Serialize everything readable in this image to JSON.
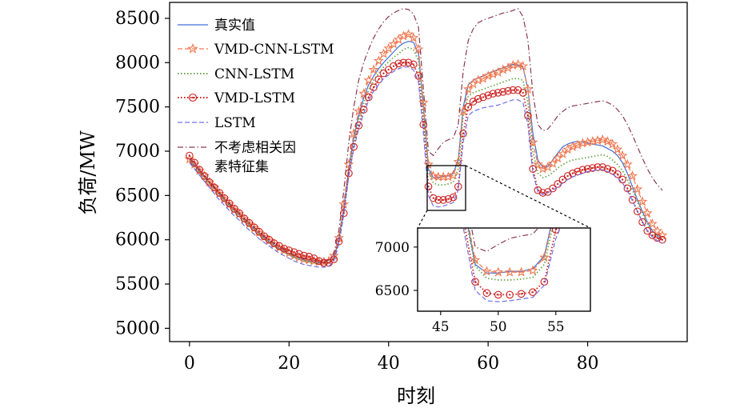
{
  "chart_data": {
    "type": "line",
    "title": "",
    "xlabel": "时刻",
    "ylabel": "负荷/MW",
    "xlim": [
      -4,
      100
    ],
    "ylim": [
      4850,
      8680
    ],
    "xticks": [
      0,
      20,
      40,
      60,
      80
    ],
    "yticks": [
      5000,
      5500,
      6000,
      6500,
      7000,
      7500,
      8000,
      8500
    ],
    "grid": false,
    "legend_position": "top-left",
    "x": [
      0,
      1,
      2,
      3,
      4,
      5,
      6,
      7,
      8,
      9,
      10,
      11,
      12,
      13,
      14,
      15,
      16,
      17,
      18,
      19,
      20,
      21,
      22,
      23,
      24,
      25,
      26,
      27,
      28,
      29,
      30,
      31,
      32,
      33,
      34,
      35,
      36,
      37,
      38,
      39,
      40,
      41,
      42,
      43,
      44,
      45,
      46,
      47,
      48,
      49,
      50,
      51,
      52,
      53,
      54,
      55,
      56,
      57,
      58,
      59,
      60,
      61,
      62,
      63,
      64,
      65,
      66,
      67,
      68,
      69,
      70,
      71,
      72,
      73,
      74,
      75,
      76,
      77,
      78,
      79,
      80,
      81,
      82,
      83,
      84,
      85,
      86,
      87,
      88,
      89,
      90,
      91,
      92,
      93,
      94,
      95
    ],
    "series": [
      {
        "name": "真实值",
        "color": "#3d6fd9",
        "style": "solid",
        "marker": "none",
        "values": [
          6900,
          6840,
          6770,
          6710,
          6640,
          6580,
          6510,
          6450,
          6390,
          6330,
          6280,
          6220,
          6170,
          6120,
          6070,
          6020,
          5980,
          5940,
          5900,
          5870,
          5840,
          5810,
          5790,
          5770,
          5760,
          5750,
          5740,
          5740,
          5740,
          5800,
          6000,
          6350,
          6800,
          7150,
          7400,
          7600,
          7750,
          7850,
          7930,
          8000,
          8060,
          8120,
          8180,
          8220,
          8240,
          8230,
          8100,
          7500,
          6800,
          6700,
          6700,
          6720,
          6720,
          6750,
          6900,
          7500,
          7750,
          7800,
          7830,
          7850,
          7880,
          7900,
          7920,
          7940,
          7960,
          7980,
          7970,
          7950,
          7700,
          7200,
          6900,
          6820,
          6830,
          6900,
          6980,
          7050,
          7080,
          7100,
          7110,
          7100,
          7090,
          7080,
          7070,
          7060,
          7030,
          7000,
          6950,
          6870,
          6750,
          6600,
          6450,
          6320,
          6200,
          6100,
          6050,
          6000
        ]
      },
      {
        "name": "VMD-CNN-LSTM",
        "color": "#f07850",
        "style": "dashed",
        "marker": "star",
        "values": [
          6910,
          6850,
          6780,
          6720,
          6650,
          6590,
          6520,
          6460,
          6400,
          6340,
          6290,
          6230,
          6180,
          6130,
          6080,
          6030,
          5990,
          5950,
          5910,
          5880,
          5850,
          5820,
          5800,
          5780,
          5770,
          5760,
          5750,
          5750,
          5760,
          5820,
          6020,
          6400,
          6850,
          7200,
          7450,
          7650,
          7800,
          7920,
          8020,
          8100,
          8160,
          8210,
          8260,
          8300,
          8320,
          8280,
          8150,
          7550,
          6850,
          6720,
          6710,
          6710,
          6710,
          6730,
          6880,
          7450,
          7700,
          7760,
          7800,
          7820,
          7850,
          7870,
          7890,
          7920,
          7940,
          7970,
          7980,
          7960,
          7700,
          7100,
          6850,
          6800,
          6820,
          6860,
          6920,
          6970,
          7020,
          7050,
          7070,
          7090,
          7100,
          7110,
          7120,
          7130,
          7110,
          7080,
          7020,
          6950,
          6850,
          6720,
          6570,
          6430,
          6300,
          6180,
          6100,
          6050
        ]
      },
      {
        "name": "CNN-LSTM",
        "color": "#6aa84f",
        "style": "dotted",
        "marker": "none",
        "values": [
          6880,
          6820,
          6760,
          6700,
          6630,
          6570,
          6500,
          6440,
          6380,
          6320,
          6270,
          6210,
          6160,
          6110,
          6060,
          6010,
          5970,
          5930,
          5890,
          5860,
          5830,
          5800,
          5780,
          5760,
          5750,
          5740,
          5730,
          5730,
          5740,
          5790,
          5990,
          6330,
          6780,
          7100,
          7350,
          7540,
          7690,
          7800,
          7880,
          7950,
          8010,
          8060,
          8100,
          8150,
          8170,
          8150,
          8020,
          7450,
          6780,
          6640,
          6620,
          6620,
          6630,
          6650,
          6800,
          7400,
          7620,
          7660,
          7680,
          7700,
          7720,
          7740,
          7760,
          7780,
          7800,
          7820,
          7820,
          7800,
          7550,
          7000,
          6750,
          6700,
          6720,
          6760,
          6810,
          6850,
          6880,
          6900,
          6910,
          6920,
          6930,
          6940,
          6950,
          6960,
          6940,
          6900,
          6850,
          6780,
          6680,
          6560,
          6430,
          6300,
          6180,
          6080,
          6030,
          6000
        ]
      },
      {
        "name": "VMD-LSTM",
        "color": "#cc1f1f",
        "style": "dotted",
        "marker": "circle",
        "values": [
          6950,
          6870,
          6790,
          6720,
          6650,
          6590,
          6530,
          6470,
          6410,
          6350,
          6300,
          6240,
          6190,
          6140,
          6090,
          6040,
          6000,
          5960,
          5930,
          5900,
          5880,
          5860,
          5840,
          5820,
          5810,
          5790,
          5760,
          5740,
          5740,
          5780,
          5980,
          6300,
          6750,
          7050,
          7290,
          7470,
          7610,
          7720,
          7810,
          7880,
          7920,
          7960,
          7990,
          8000,
          8000,
          7980,
          7850,
          7300,
          6600,
          6470,
          6450,
          6450,
          6460,
          6480,
          6600,
          7200,
          7500,
          7560,
          7590,
          7610,
          7630,
          7650,
          7660,
          7670,
          7680,
          7690,
          7690,
          7660,
          7400,
          6800,
          6560,
          6530,
          6540,
          6580,
          6630,
          6680,
          6720,
          6750,
          6770,
          6790,
          6800,
          6810,
          6820,
          6820,
          6800,
          6780,
          6740,
          6680,
          6580,
          6450,
          6320,
          6200,
          6100,
          6050,
          6020,
          6000
        ]
      },
      {
        "name": "LSTM",
        "color": "#7070e8",
        "style": "dashed",
        "marker": "none",
        "values": [
          6870,
          6800,
          6730,
          6660,
          6590,
          6520,
          6450,
          6390,
          6330,
          6270,
          6220,
          6160,
          6110,
          6060,
          6010,
          5970,
          5930,
          5890,
          5850,
          5820,
          5790,
          5760,
          5740,
          5720,
          5710,
          5700,
          5690,
          5690,
          5700,
          5760,
          5950,
          6280,
          6720,
          7030,
          7250,
          7430,
          7570,
          7680,
          7750,
          7820,
          7860,
          7900,
          7930,
          7950,
          7950,
          7920,
          7780,
          7200,
          6500,
          6380,
          6370,
          6380,
          6400,
          6420,
          6560,
          7100,
          7400,
          7450,
          7470,
          7490,
          7500,
          7510,
          7520,
          7540,
          7560,
          7580,
          7580,
          7550,
          7300,
          6750,
          6540,
          6510,
          6530,
          6560,
          6600,
          6640,
          6680,
          6710,
          6730,
          6750,
          6770,
          6780,
          6790,
          6790,
          6770,
          6740,
          6700,
          6640,
          6550,
          6440,
          6320,
          6200,
          6100,
          6030,
          5990,
          5960
        ]
      },
      {
        "name": "不考虑相关因素特征集",
        "color": "#8a3a50",
        "style": "dashdot",
        "marker": "none",
        "values": [
          6920,
          6860,
          6790,
          6730,
          6660,
          6600,
          6530,
          6470,
          6410,
          6350,
          6300,
          6240,
          6190,
          6140,
          6090,
          6040,
          6000,
          5960,
          5920,
          5890,
          5860,
          5830,
          5810,
          5790,
          5780,
          5770,
          5760,
          5760,
          5770,
          5840,
          6100,
          6550,
          7100,
          7500,
          7800,
          8000,
          8150,
          8280,
          8380,
          8460,
          8520,
          8560,
          8590,
          8610,
          8600,
          8550,
          8400,
          7700,
          7000,
          6950,
          7030,
          7100,
          7130,
          7150,
          7300,
          7900,
          8250,
          8380,
          8450,
          8480,
          8500,
          8520,
          8540,
          8560,
          8570,
          8590,
          8610,
          8520,
          8250,
          7650,
          7300,
          7230,
          7250,
          7320,
          7400,
          7450,
          7490,
          7510,
          7520,
          7530,
          7540,
          7550,
          7560,
          7570,
          7550,
          7520,
          7470,
          7400,
          7300,
          7180,
          7050,
          6920,
          6800,
          6700,
          6620,
          6560
        ]
      }
    ],
    "inset": {
      "xlim": [
        43,
        58
      ],
      "ylim": [
        6260,
        7220
      ],
      "xticks": [
        45,
        50,
        55
      ],
      "yticks": [
        6500,
        7000
      ]
    }
  }
}
